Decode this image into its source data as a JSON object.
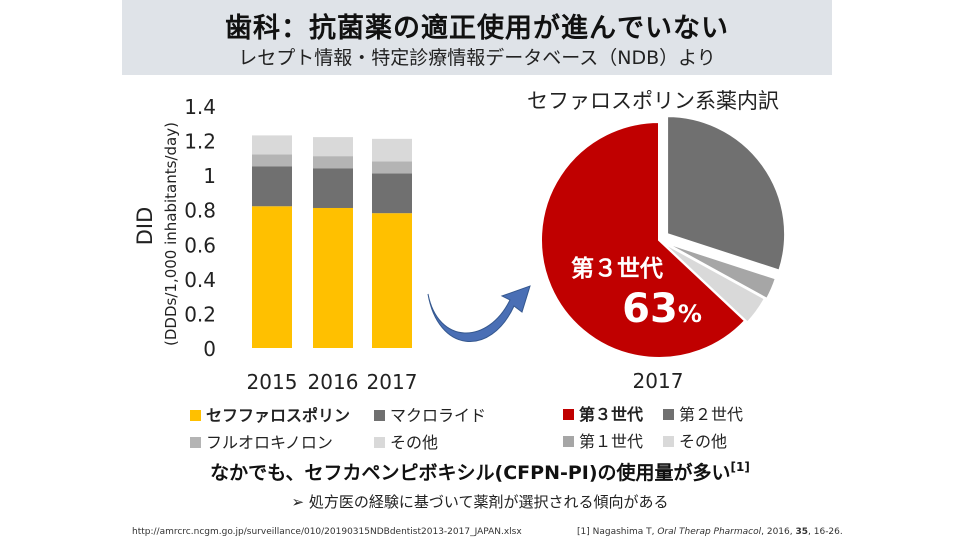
{
  "header": {
    "title": "歯科：抗菌薬の適正使用が進んでいない",
    "subtitle": "レセプト情報・特定診療情報データベース（NDB）より"
  },
  "bar_legend": [
    {
      "label": "セフファロスポリン",
      "color": "#ffc000",
      "bold": true
    },
    {
      "label": "マクロライド",
      "color": "#707070",
      "bold": false
    },
    {
      "label": "フルオロキノロン",
      "color": "#b4b4b4",
      "bold": false
    },
    {
      "label": "その他",
      "color": "#d9d9d9",
      "bold": false
    }
  ],
  "pie_legend": [
    {
      "label": "第３世代",
      "color": "#c00000",
      "bold": true
    },
    {
      "label": "第２世代",
      "color": "#707070",
      "bold": false
    },
    {
      "label": "第１世代",
      "color": "#a6a6a6",
      "bold": false
    },
    {
      "label": "その他",
      "color": "#d9d9d9",
      "bold": false
    }
  ],
  "chart_data": [
    {
      "type": "bar",
      "stacked": true,
      "ylabel": "DID",
      "ylabel2": "(DDDs/1,000 inhabitants/day)",
      "ylim": [
        0,
        1.4
      ],
      "yticks": [
        "0",
        "0.2",
        "0.4",
        "0.6",
        "0.8",
        "1",
        "1.2",
        "1.4"
      ],
      "yticks_values": [
        0,
        0.2,
        0.4,
        0.6,
        0.8,
        1.0,
        1.2,
        1.4
      ],
      "categories": [
        "2015",
        "2016",
        "2017"
      ],
      "series": [
        {
          "name": "セフファロスポリン",
          "color": "#ffc000",
          "values": [
            0.82,
            0.81,
            0.78
          ]
        },
        {
          "name": "マクロライド",
          "color": "#707070",
          "values": [
            0.23,
            0.23,
            0.23
          ]
        },
        {
          "name": "フルオロキノロン",
          "color": "#b4b4b4",
          "values": [
            0.07,
            0.07,
            0.07
          ]
        },
        {
          "name": "その他",
          "color": "#d9d9d9",
          "values": [
            0.11,
            0.11,
            0.13
          ]
        }
      ]
    },
    {
      "type": "pie",
      "title": "セファロスポリン系薬内訳",
      "xlabel": "2017",
      "highlight_label": "第３世代",
      "highlight_value": "63",
      "highlight_unit": "%",
      "slices": [
        {
          "name": "第３世代",
          "value": 63,
          "color": "#c00000"
        },
        {
          "name": "第２世代",
          "value": 30,
          "color": "#707070"
        },
        {
          "name": "第１世代",
          "value": 3,
          "color": "#a6a6a6"
        },
        {
          "name": "その他",
          "value": 4,
          "color": "#d9d9d9"
        }
      ]
    }
  ],
  "bottom": {
    "main": "なかでも、セフカペンピボキシル(CFPN-PI)の使用量が多い",
    "main_ref": "[1]",
    "sub": "処方医の経験に基づいて薬剤が選択される傾向がある",
    "sub_bullet": "➢"
  },
  "footer": {
    "url": "http://amrcrc.ncgm.go.jp/surveillance/010/20190315NDBdentist2013-2017_JAPAN.xlsx",
    "ref_prefix": "[1] Nagashima T, ",
    "ref_journal": "Oral Therap Pharmacol",
    "ref_year": ", 2016, ",
    "ref_volume": "35",
    "ref_pages": ", 16-26."
  }
}
